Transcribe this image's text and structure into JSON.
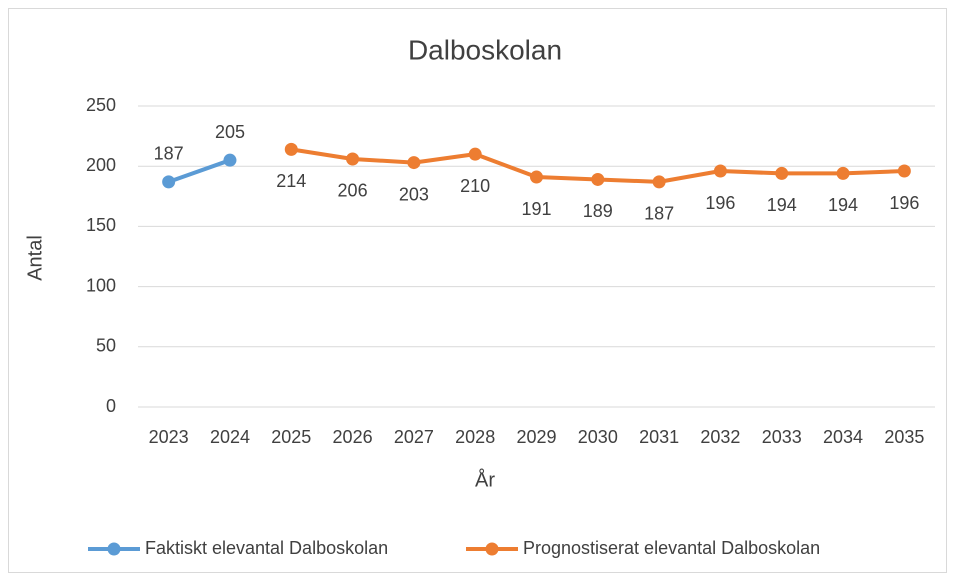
{
  "chart_data": {
    "type": "line",
    "title": "Dalboskolan",
    "x_label": "År",
    "y_label": "Antal",
    "categories": [
      "2023",
      "2024",
      "2025",
      "2026",
      "2027",
      "2028",
      "2029",
      "2030",
      "2031",
      "2032",
      "2033",
      "2034",
      "2035"
    ],
    "series": [
      {
        "name": "Faktiskt elevantal Dalboskolan",
        "color": "#5b9bd5",
        "label_position": "above",
        "values": [
          187,
          205,
          null,
          null,
          null,
          null,
          null,
          null,
          null,
          null,
          null,
          null,
          null
        ]
      },
      {
        "name": "Prognostiserat elevantal Dalboskolan",
        "color": "#ed7d31",
        "label_position": "below",
        "values": [
          null,
          null,
          214,
          206,
          203,
          210,
          191,
          189,
          187,
          196,
          194,
          194,
          196
        ]
      }
    ],
    "ylim": [
      0,
      250
    ],
    "yticks": [
      0,
      50,
      100,
      150,
      200,
      250
    ],
    "grid": true,
    "legend": "bottom"
  }
}
